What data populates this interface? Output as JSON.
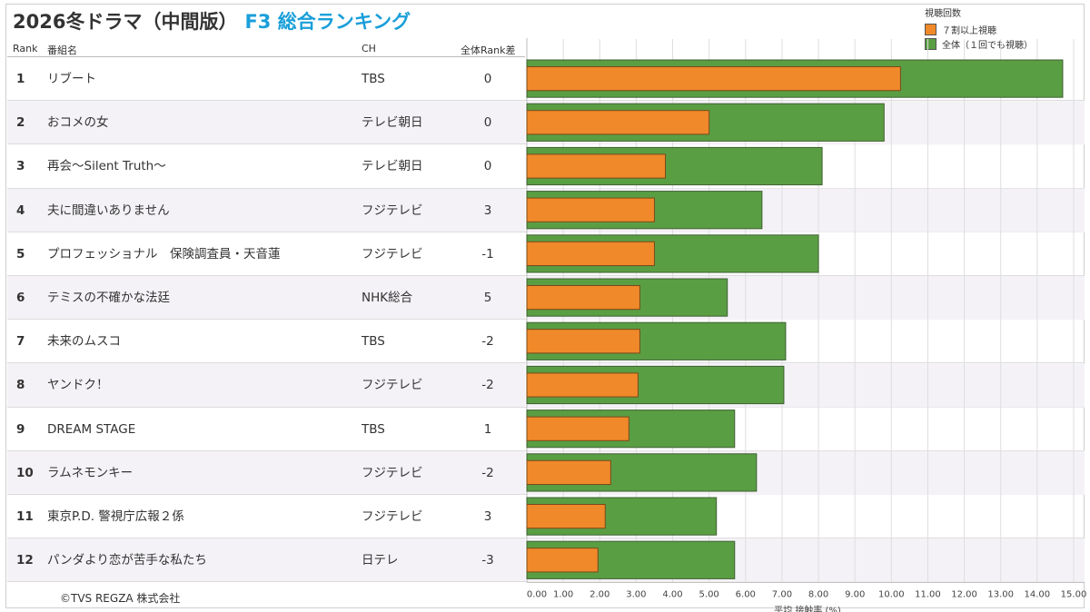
{
  "header": {
    "title_main": "2026冬ドラマ（中間版）",
    "title_sub": "F3 総合ランキング"
  },
  "legend": {
    "title": "視聴回数",
    "items": [
      {
        "label": "７割以上視聴",
        "color": "#f0892a"
      },
      {
        "label": "全体（１回でも視聴）",
        "color": "#5a9e43"
      }
    ]
  },
  "columns": {
    "rank": "Rank",
    "name": "番組名",
    "channel": "CH",
    "rank_diff": "全体Rank差"
  },
  "rows": [
    {
      "rank": "1",
      "name": "リブート",
      "channel": "TBS",
      "rank_diff": "0"
    },
    {
      "rank": "2",
      "name": "おコメの女",
      "channel": "テレビ朝日",
      "rank_diff": "0"
    },
    {
      "rank": "3",
      "name": "再会～Silent Truth～",
      "channel": "テレビ朝日",
      "rank_diff": "0"
    },
    {
      "rank": "4",
      "name": "夫に間違いありません",
      "channel": "フジテレビ",
      "rank_diff": "3"
    },
    {
      "rank": "5",
      "name": "プロフェッショナル　保険調査員・天音蓮",
      "channel": "フジテレビ",
      "rank_diff": "-1"
    },
    {
      "rank": "6",
      "name": "テミスの不確かな法廷",
      "channel": "NHK総合",
      "rank_diff": "5"
    },
    {
      "rank": "7",
      "name": "未来のムスコ",
      "channel": "TBS",
      "rank_diff": "-2"
    },
    {
      "rank": "8",
      "name": "ヤンドク！",
      "channel": "フジテレビ",
      "rank_diff": "-2"
    },
    {
      "rank": "9",
      "name": "DREAM STAGE",
      "channel": "TBS",
      "rank_diff": "1"
    },
    {
      "rank": "10",
      "name": "ラムネモンキー",
      "channel": "フジテレビ",
      "rank_diff": "-2"
    },
    {
      "rank": "11",
      "name": "東京P.D. 警視庁広報２係",
      "channel": "フジテレビ",
      "rank_diff": "3"
    },
    {
      "rank": "12",
      "name": "パンダより恋が苦手な私たち",
      "channel": "日テレ",
      "rank_diff": "-3"
    }
  ],
  "chart_data": {
    "type": "bar",
    "orientation": "horizontal",
    "categories": [
      "リブート",
      "おコメの女",
      "再会～Silent Truth～",
      "夫に間違いありません",
      "プロフェッショナル　保険調査員・天音蓮",
      "テミスの不確かな法廷",
      "未来のムスコ",
      "ヤンドク！",
      "DREAM STAGE",
      "ラムネモンキー",
      "東京P.D. 警視庁広報２係",
      "パンダより恋が苦手な私たち"
    ],
    "series": [
      {
        "name": "全体（１回でも視聴）",
        "color": "#5a9e43",
        "values": [
          14.7,
          9.8,
          8.1,
          6.45,
          8.0,
          5.5,
          7.1,
          7.05,
          5.7,
          6.3,
          5.2,
          5.7
        ]
      },
      {
        "name": "７割以上視聴",
        "color": "#f0892a",
        "values": [
          10.25,
          5.0,
          3.8,
          3.5,
          3.5,
          3.1,
          3.1,
          3.05,
          2.8,
          2.3,
          2.15,
          1.95
        ]
      }
    ],
    "xlabel": "平均 接触率 (%)",
    "xticks": [
      "0.00",
      "1.00",
      "2.00",
      "3.00",
      "4.00",
      "5.00",
      "6.00",
      "7.00",
      "8.00",
      "9.00",
      "10.00",
      "11.00",
      "12.00",
      "13.00",
      "14.00",
      "15.00"
    ],
    "xlim": [
      0,
      15
    ],
    "grid": true,
    "legend_position": "top-right"
  },
  "footer": {
    "copyright": "©TVS REGZA 株式会社"
  }
}
